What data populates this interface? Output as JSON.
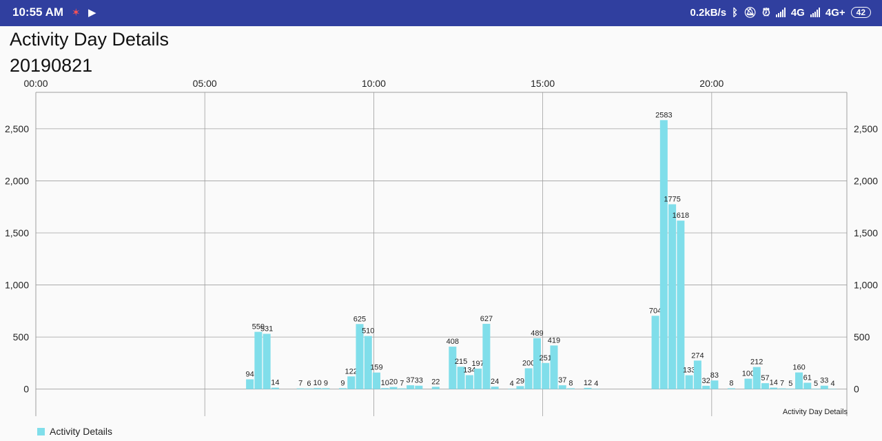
{
  "status_bar": {
    "time": "10:55 AM",
    "speed": "0.2kB/s",
    "network1": "4G",
    "network2": "4G+",
    "battery": "42",
    "icons": [
      "notification-icon",
      "play-store-icon",
      "bluetooth-icon",
      "muted-bell-icon",
      "alarm-icon",
      "signal-icon",
      "signal-icon"
    ]
  },
  "page": {
    "title": "Activity Day Details",
    "date": "20190821"
  },
  "legend": {
    "label": "Activity Details",
    "color": "#80deea"
  },
  "chart_data": {
    "type": "bar",
    "description": "Activity Day Details",
    "bar_color": "#80deea",
    "x_axis": {
      "position": "top",
      "unit": "minutes since midnight",
      "min": 0,
      "max": 1440,
      "ticks": [
        0,
        300,
        600,
        900,
        1200
      ],
      "tick_labels": [
        "00:00",
        "05:00",
        "10:00",
        "15:00",
        "20:00"
      ]
    },
    "y_axis": {
      "min": -260,
      "max": 2850,
      "ticks": [
        0,
        500,
        1000,
        1500,
        2000,
        2500
      ],
      "tick_labels": [
        "0",
        "500",
        "1,000",
        "1,500",
        "2,000",
        "2,500"
      ],
      "left": true,
      "right": true
    },
    "grid": true,
    "bar_width": 11,
    "series": [
      {
        "name": "Activity Details",
        "points": [
          {
            "x": 380,
            "y": 94
          },
          {
            "x": 395,
            "y": 550
          },
          {
            "x": 410,
            "y": 531
          },
          {
            "x": 425,
            "y": 14
          },
          {
            "x": 470,
            "y": 7
          },
          {
            "x": 485,
            "y": 6
          },
          {
            "x": 500,
            "y": 10
          },
          {
            "x": 515,
            "y": 9
          },
          {
            "x": 545,
            "y": 9
          },
          {
            "x": 560,
            "y": 122
          },
          {
            "x": 575,
            "y": 625
          },
          {
            "x": 590,
            "y": 510
          },
          {
            "x": 605,
            "y": 159
          },
          {
            "x": 620,
            "y": 10
          },
          {
            "x": 635,
            "y": 20
          },
          {
            "x": 650,
            "y": 7
          },
          {
            "x": 665,
            "y": 37
          },
          {
            "x": 680,
            "y": 33
          },
          {
            "x": 710,
            "y": 22
          },
          {
            "x": 740,
            "y": 408
          },
          {
            "x": 755,
            "y": 215
          },
          {
            "x": 770,
            "y": 134
          },
          {
            "x": 785,
            "y": 197
          },
          {
            "x": 800,
            "y": 627
          },
          {
            "x": 815,
            "y": 24
          },
          {
            "x": 845,
            "y": 4
          },
          {
            "x": 860,
            "y": 29
          },
          {
            "x": 875,
            "y": 200
          },
          {
            "x": 890,
            "y": 489
          },
          {
            "x": 905,
            "y": 251
          },
          {
            "x": 920,
            "y": 419
          },
          {
            "x": 935,
            "y": 37
          },
          {
            "x": 950,
            "y": 8
          },
          {
            "x": 980,
            "y": 12
          },
          {
            "x": 995,
            "y": 4
          },
          {
            "x": 1100,
            "y": 704
          },
          {
            "x": 1115,
            "y": 2583
          },
          {
            "x": 1130,
            "y": 1775
          },
          {
            "x": 1145,
            "y": 1618
          },
          {
            "x": 1160,
            "y": 133
          },
          {
            "x": 1175,
            "y": 274
          },
          {
            "x": 1190,
            "y": 32
          },
          {
            "x": 1205,
            "y": 83
          },
          {
            "x": 1235,
            "y": 8
          },
          {
            "x": 1265,
            "y": 100
          },
          {
            "x": 1280,
            "y": 212
          },
          {
            "x": 1295,
            "y": 57
          },
          {
            "x": 1310,
            "y": 14
          },
          {
            "x": 1325,
            "y": 7
          },
          {
            "x": 1340,
            "y": 5
          },
          {
            "x": 1355,
            "y": 160
          },
          {
            "x": 1370,
            "y": 61
          },
          {
            "x": 1385,
            "y": 5
          },
          {
            "x": 1400,
            "y": 33
          },
          {
            "x": 1415,
            "y": 4
          }
        ]
      }
    ]
  }
}
